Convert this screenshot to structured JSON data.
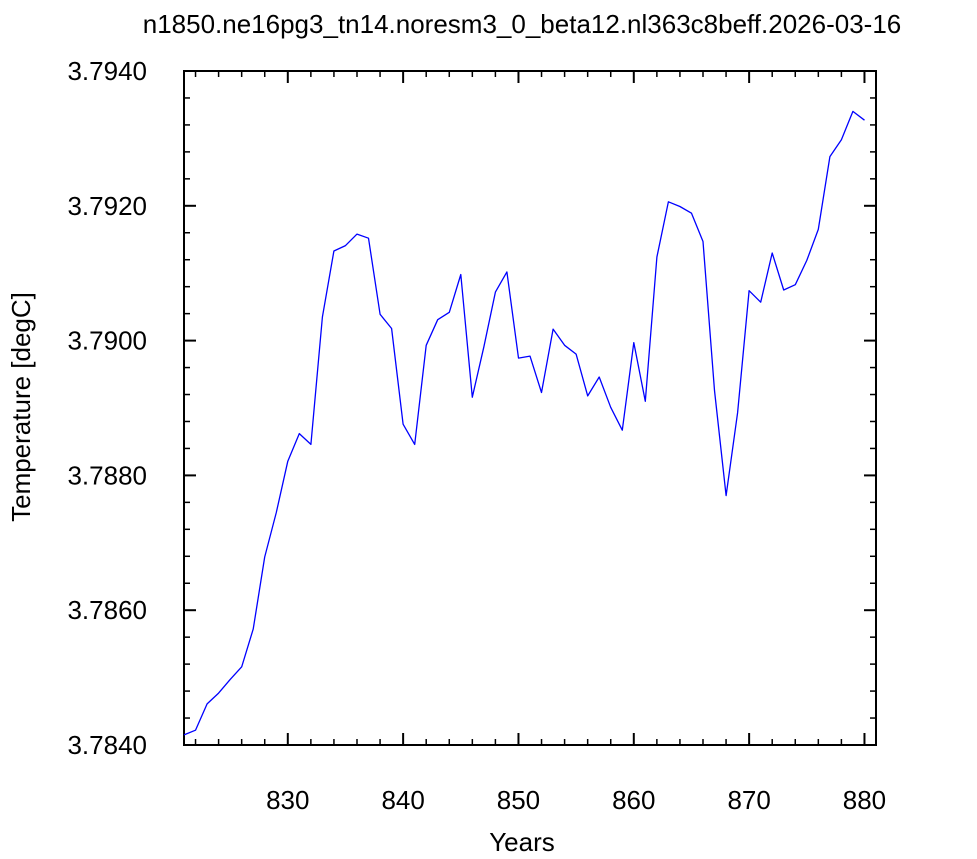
{
  "chart_data": {
    "type": "line",
    "title": "n1850.ne16pg3_tn14.noresm3_0_beta12.nl363c8beff.2026-03-16",
    "xlabel": "Years",
    "ylabel": "Temperature [degC]",
    "xlim": [
      821,
      881
    ],
    "ylim": [
      3.784,
      3.794
    ],
    "x_ticks": [
      "830",
      "840",
      "850",
      "860",
      "870",
      "880"
    ],
    "y_ticks": [
      "3.7840",
      "3.7860",
      "3.7880",
      "3.7900",
      "3.7920",
      "3.7940"
    ],
    "line_color": "#0000ff",
    "series": [
      {
        "x": [
          821,
          822,
          823,
          824,
          825,
          826,
          827,
          828,
          829,
          830,
          831,
          832,
          833,
          834,
          835,
          836,
          837,
          838,
          839,
          840,
          841,
          842,
          843,
          844,
          845,
          846,
          847,
          848,
          849,
          850,
          851,
          852,
          853,
          854,
          855,
          856,
          857,
          858,
          859,
          860,
          861,
          862,
          863,
          864,
          865,
          866,
          867,
          868,
          869,
          870,
          871,
          872,
          873,
          874,
          875,
          876,
          877,
          878,
          879,
          880
        ],
        "y": [
          3.78415,
          3.78422,
          3.78461,
          3.78477,
          3.78497,
          3.78516,
          3.78572,
          3.78679,
          3.78745,
          3.78821,
          3.78862,
          3.78846,
          3.79035,
          3.79133,
          3.79141,
          3.79158,
          3.79152,
          3.79039,
          3.79018,
          3.78876,
          3.78846,
          3.78993,
          3.79031,
          3.79042,
          3.79098,
          3.78916,
          3.78991,
          3.79072,
          3.79102,
          3.78974,
          3.78977,
          3.78923,
          3.79017,
          3.78993,
          3.7898,
          3.78918,
          3.78946,
          3.78901,
          3.78867,
          3.78997,
          3.7891,
          3.79124,
          3.79206,
          3.79199,
          3.79189,
          3.79147,
          3.78926,
          3.7877,
          3.78893,
          3.79074,
          3.79057,
          3.7913,
          3.79075,
          3.79083,
          3.79119,
          3.79165,
          3.79273,
          3.79298,
          3.7934,
          3.79327
        ]
      }
    ]
  }
}
